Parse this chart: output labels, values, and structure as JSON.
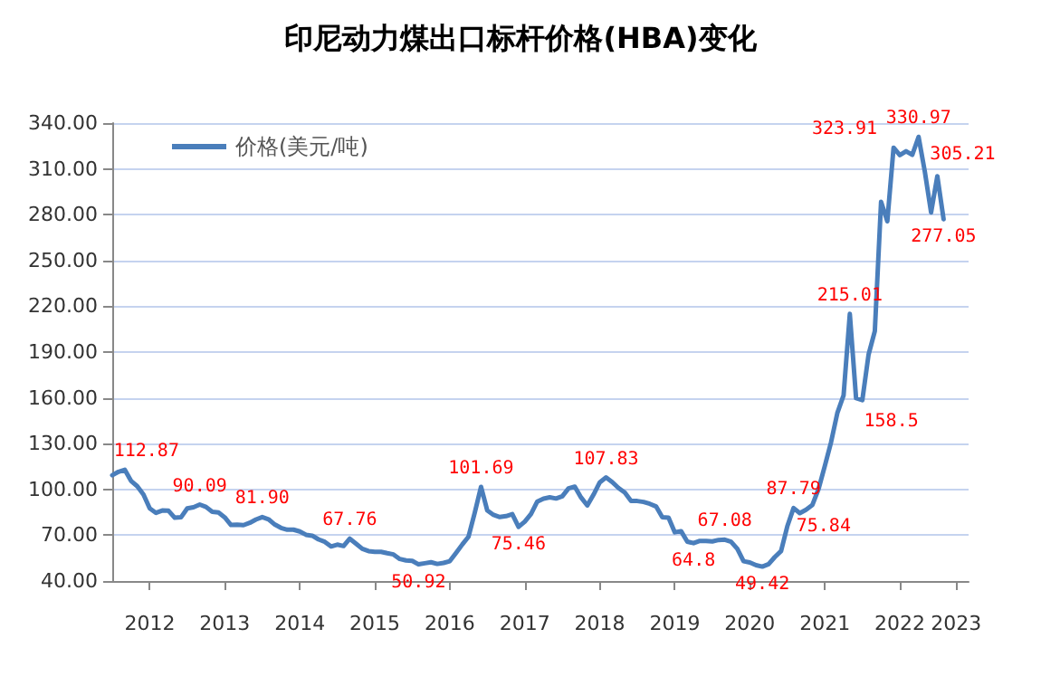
{
  "chart_data": {
    "type": "line",
    "title": "印尼动力煤出口标杆价格(HBA)变化",
    "x": [
      "2012-01",
      "2012-02",
      "2012-03",
      "2012-04",
      "2012-05",
      "2012-06",
      "2012-07",
      "2012-08",
      "2012-09",
      "2012-10",
      "2012-11",
      "2012-12",
      "2013-01",
      "2013-02",
      "2013-03",
      "2013-04",
      "2013-05",
      "2013-06",
      "2013-07",
      "2013-08",
      "2013-09",
      "2013-10",
      "2013-11",
      "2013-12",
      "2014-01",
      "2014-02",
      "2014-03",
      "2014-04",
      "2014-05",
      "2014-06",
      "2014-07",
      "2014-08",
      "2014-09",
      "2014-10",
      "2014-11",
      "2014-12",
      "2015-01",
      "2015-02",
      "2015-03",
      "2015-04",
      "2015-05",
      "2015-06",
      "2015-07",
      "2015-08",
      "2015-09",
      "2015-10",
      "2015-11",
      "2015-12",
      "2016-01",
      "2016-02",
      "2016-03",
      "2016-04",
      "2016-05",
      "2016-06",
      "2016-07",
      "2016-08",
      "2016-09",
      "2016-10",
      "2016-11",
      "2016-12",
      "2017-01",
      "2017-02",
      "2017-03",
      "2017-04",
      "2017-05",
      "2017-06",
      "2017-07",
      "2017-08",
      "2017-09",
      "2017-10",
      "2017-11",
      "2017-12",
      "2018-01",
      "2018-02",
      "2018-03",
      "2018-04",
      "2018-05",
      "2018-06",
      "2018-07",
      "2018-08",
      "2018-09",
      "2018-10",
      "2018-11",
      "2018-12",
      "2019-01",
      "2019-02",
      "2019-03",
      "2019-04",
      "2019-05",
      "2019-06",
      "2019-07",
      "2019-08",
      "2019-09",
      "2019-10",
      "2019-11",
      "2019-12",
      "2020-01",
      "2020-02",
      "2020-03",
      "2020-04",
      "2020-05",
      "2020-06",
      "2020-07",
      "2020-08",
      "2020-09",
      "2020-10",
      "2020-11",
      "2020-12",
      "2021-01",
      "2021-02",
      "2021-03",
      "2021-04",
      "2021-05",
      "2021-06",
      "2021-07",
      "2021-08",
      "2021-09",
      "2021-10",
      "2021-11",
      "2021-12",
      "2022-01",
      "2022-02",
      "2022-03",
      "2022-04",
      "2022-05",
      "2022-06",
      "2022-07",
      "2022-08",
      "2022-09",
      "2022-10",
      "2022-11",
      "2022-12",
      "2023-01",
      "2023-02"
    ],
    "series": [
      {
        "name": "价格(美元/吨)",
        "color": "#4a7ebb",
        "values": [
          109.29,
          111.58,
          112.87,
          105.61,
          102.12,
          96.65,
          87.56,
          84.65,
          86.21,
          86.04,
          81.44,
          81.75,
          87.55,
          88.35,
          90.09,
          88.56,
          85.33,
          84.87,
          81.69,
          76.7,
          76.89,
          76.61,
          78.13,
          80.31,
          81.9,
          80.44,
          77.01,
          74.81,
          73.6,
          73.64,
          72.45,
          70.29,
          69.69,
          67.26,
          65.7,
          62.65,
          63.84,
          62.92,
          67.76,
          64.48,
          61.08,
          59.59,
          59.16,
          59.14,
          58.21,
          57.39,
          54.43,
          53.51,
          53.2,
          50.92,
          51.62,
          52.32,
          51.2,
          51.87,
          53,
          58.37,
          63.93,
          69.07,
          84.89,
          101.69,
          86.23,
          83.32,
          81.9,
          82.51,
          83.81,
          75.46,
          78.95,
          83.97,
          92.03,
          93.99,
          94.8,
          94.04,
          95.54,
          100.69,
          101.86,
          94.75,
          89.53,
          96.61,
          104.65,
          107.83,
          104.81,
          100.89,
          97.9,
          92.51,
          92.41,
          91.8,
          90.57,
          88.85,
          81.86,
          81.48,
          71.92,
          72.67,
          65.79,
          64.8,
          66.27,
          66.3,
          65.93,
          66.89,
          67.08,
          65.77,
          61.11,
          52.98,
          52.16,
          50.34,
          49.42,
          51,
          55.71,
          59.65,
          75.84,
          87.79,
          84.47,
          86.68,
          89.74,
          100.33,
          115.35,
          130.99,
          150.03,
          161.63,
          215.01,
          159.79,
          158.5,
          188.38,
          203.69,
          288.4,
          275.64,
          323.91,
          319,
          321.59,
          319.22,
          330.97,
          308.2,
          281.48,
          305.21,
          277.05
        ],
        "value_labels": [
          null,
          null,
          "112.87",
          null,
          null,
          null,
          null,
          null,
          null,
          null,
          null,
          null,
          null,
          null,
          "90.09",
          null,
          null,
          null,
          null,
          null,
          null,
          null,
          null,
          null,
          "81.90",
          null,
          null,
          null,
          null,
          null,
          null,
          null,
          null,
          null,
          null,
          null,
          null,
          null,
          "67.76",
          null,
          null,
          null,
          null,
          null,
          null,
          null,
          null,
          null,
          null,
          "50.92",
          null,
          null,
          null,
          null,
          null,
          null,
          null,
          null,
          null,
          "101.69",
          null,
          null,
          null,
          null,
          null,
          "75.46",
          null,
          null,
          null,
          null,
          null,
          null,
          null,
          null,
          null,
          null,
          null,
          null,
          null,
          "107.83",
          null,
          null,
          null,
          null,
          null,
          null,
          null,
          null,
          null,
          null,
          null,
          null,
          null,
          "64.8",
          null,
          null,
          null,
          null,
          "67.08",
          null,
          null,
          null,
          null,
          null,
          "49.42",
          null,
          null,
          null,
          "75.84",
          "87.79",
          null,
          null,
          null,
          null,
          null,
          null,
          null,
          null,
          "215.01",
          null,
          "158.5",
          null,
          null,
          null,
          null,
          "323.91",
          null,
          null,
          null,
          "330.97",
          null,
          null,
          "305.21",
          "277.05"
        ]
      }
    ],
    "xlim": [
      "2012-01",
      "2023-06"
    ],
    "xticks": [
      {
        "value": "2012-07",
        "label": "2012"
      },
      {
        "value": "2013-07",
        "label": "2013"
      },
      {
        "value": "2014-07",
        "label": "2014"
      },
      {
        "value": "2015-07",
        "label": "2015"
      },
      {
        "value": "2016-07",
        "label": "2016"
      },
      {
        "value": "2017-07",
        "label": "2017"
      },
      {
        "value": "2018-07",
        "label": "2018"
      },
      {
        "value": "2019-07",
        "label": "2019"
      },
      {
        "value": "2020-07",
        "label": "2020"
      },
      {
        "value": "2021-07",
        "label": "2021"
      },
      {
        "value": "2022-07",
        "label": "2022"
      },
      {
        "value": "2023-04",
        "label": "2023"
      }
    ],
    "ylim": [
      40,
      340
    ],
    "yticks": [
      {
        "value": 40,
        "label": "40.00"
      },
      {
        "value": 70,
        "label": "70.00"
      },
      {
        "value": 100,
        "label": "100.00"
      },
      {
        "value": 130,
        "label": "130.00"
      },
      {
        "value": 160,
        "label": "160.00"
      },
      {
        "value": 190,
        "label": "190.00"
      },
      {
        "value": 220,
        "label": "220.00"
      },
      {
        "value": 250,
        "label": "250.00"
      },
      {
        "value": 280,
        "label": "280.00"
      },
      {
        "value": 310,
        "label": "310.00"
      },
      {
        "value": 340,
        "label": "340.00"
      }
    ],
    "grid": "y",
    "legend": "top left",
    "marker": "none",
    "line_style": "solid"
  }
}
